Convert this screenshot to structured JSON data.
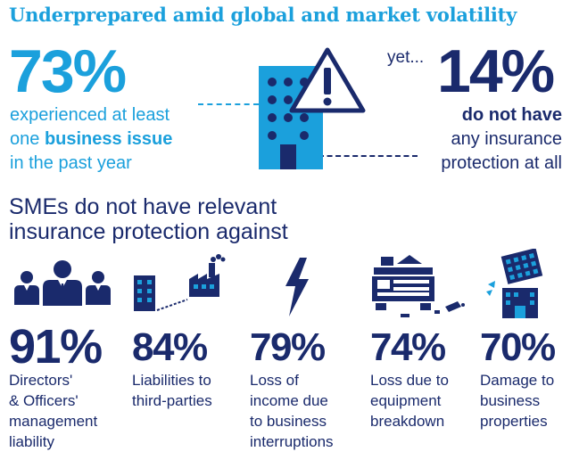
{
  "title": "Underprepared amid global and market volatility",
  "left_stat": {
    "value": "73%",
    "line1": "experienced at least",
    "line2_prefix": "one ",
    "line2_bold": "business issue",
    "line3": "in the past year"
  },
  "right_stat": {
    "intro": "yet...",
    "value": "14%",
    "line1": "do not have",
    "line2": "any insurance",
    "line3": "protection at all"
  },
  "subheading": {
    "line1": "SMEs do not have relevant",
    "line2": "insurance protection against"
  },
  "stats": [
    {
      "icon": "people-icon",
      "value": "91%",
      "lines": [
        "Directors'",
        "& Officers'",
        "management",
        "liability"
      ]
    },
    {
      "icon": "buildings-factory-icon",
      "value": "84%",
      "lines": [
        "Liabilities to",
        "third-parties"
      ]
    },
    {
      "icon": "lightning-icon",
      "value": "79%",
      "lines": [
        "Loss of",
        "income due",
        "to business",
        "interruptions"
      ]
    },
    {
      "icon": "broken-machine-icon",
      "value": "74%",
      "lines": [
        "Loss due to",
        "equipment",
        "breakdown"
      ]
    },
    {
      "icon": "damaged-building-icon",
      "value": "70%",
      "lines": [
        "Damage to",
        "business",
        "properties"
      ]
    }
  ],
  "colors": {
    "cyan": "#1ba0dc",
    "navy": "#1a2a6c"
  }
}
